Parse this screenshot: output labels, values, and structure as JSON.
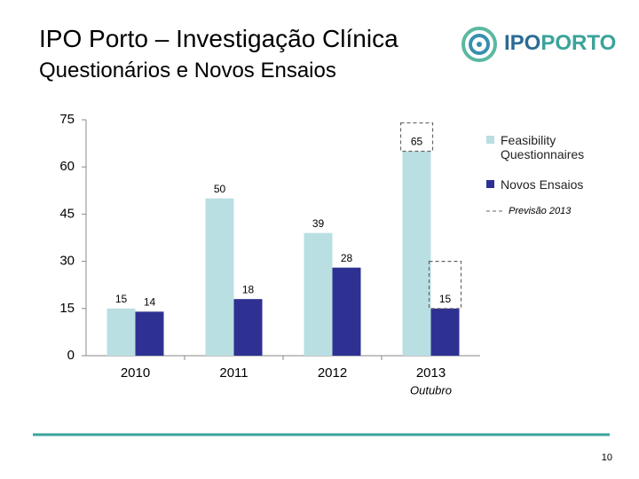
{
  "title": "IPO Porto – Investigação Clínica",
  "subtitle": "Questionários e Novos Ensaios",
  "logo": {
    "part1": "IPO",
    "part2": "PORTO"
  },
  "page_number": "10",
  "chart_data": {
    "type": "bar",
    "categories": [
      "2010",
      "2011",
      "2012",
      "2013"
    ],
    "category_sublabels": [
      null,
      null,
      null,
      "Outubro"
    ],
    "series": [
      {
        "name": "Feasibility Questionnaires",
        "color": "#b9dfe3",
        "values": [
          15,
          50,
          39,
          65
        ],
        "forecast": [
          null,
          null,
          null,
          74
        ]
      },
      {
        "name": "Novos Ensaios",
        "color": "#2e3192",
        "values": [
          14,
          18,
          28,
          15
        ],
        "forecast": [
          null,
          null,
          null,
          30
        ]
      }
    ],
    "forecast_label": "Previsão 2013",
    "ylim": [
      0,
      75
    ],
    "yticks": [
      0,
      15,
      30,
      45,
      60,
      75
    ],
    "grid": false,
    "legend": "right"
  }
}
